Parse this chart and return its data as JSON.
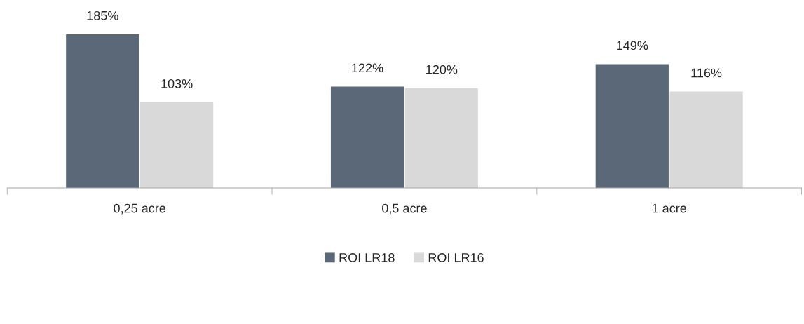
{
  "chart_data": {
    "type": "bar",
    "categories": [
      "0,25 acre",
      "0,5 acre",
      "1 acre"
    ],
    "series": [
      {
        "name": "ROI LR18",
        "color": "#5a6878",
        "values": [
          185,
          122,
          149
        ],
        "value_labels": [
          "185%",
          "122%",
          "149%"
        ]
      },
      {
        "name": "ROI LR16",
        "color": "#d9d9d9",
        "values": [
          103,
          120,
          116
        ],
        "value_labels": [
          "103%",
          "120%",
          "116%"
        ]
      }
    ],
    "legend": "bottom",
    "grid": false
  }
}
